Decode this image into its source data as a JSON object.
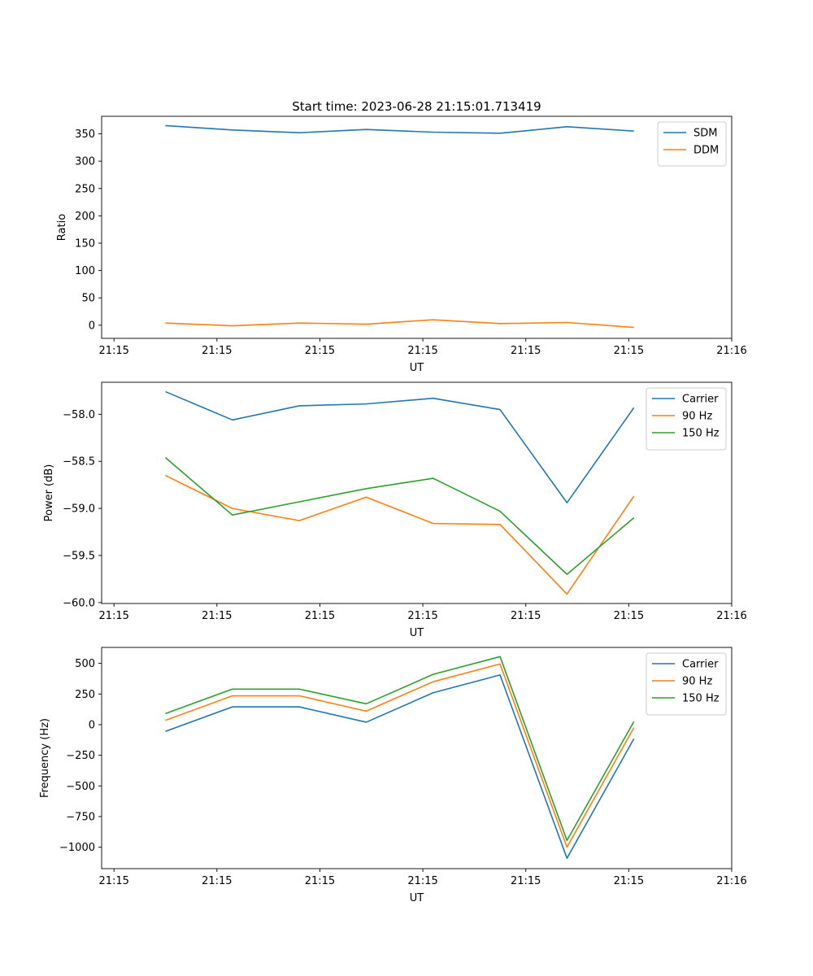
{
  "figure": {
    "title": "Start time: 2023-06-28 21:15:01.713419"
  },
  "chart_data": [
    {
      "type": "line",
      "title": "Start time: 2023-06-28 21:15:01.713419",
      "xlabel": "UT",
      "ylabel": "Ratio",
      "x_tick_labels": [
        "21:15",
        "21:15",
        "21:15",
        "21:15",
        "21:15",
        "21:15",
        "21:16"
      ],
      "x_tick_values": [
        0,
        1,
        2,
        3,
        4,
        5,
        6
      ],
      "xlim": [
        -0.12,
        6.0
      ],
      "x": [
        0.5,
        1.15,
        1.8,
        2.45,
        3.1,
        3.75,
        4.4,
        5.05
      ],
      "ylim": [
        -24,
        382
      ],
      "y_ticks": [
        0,
        50,
        100,
        150,
        200,
        250,
        300,
        350
      ],
      "legend_position": "upper right",
      "series": [
        {
          "name": "SDM",
          "color": "#1f77b4",
          "values": [
            365,
            357,
            352,
            358,
            353,
            351,
            363,
            355
          ]
        },
        {
          "name": "DDM",
          "color": "#ff7f0e",
          "values": [
            4,
            -1,
            4,
            2,
            10,
            3,
            5,
            -4
          ]
        }
      ]
    },
    {
      "type": "line",
      "xlabel": "UT",
      "ylabel": "Power (dB)",
      "x_tick_labels": [
        "21:15",
        "21:15",
        "21:15",
        "21:15",
        "21:15",
        "21:15",
        "21:16"
      ],
      "x_tick_values": [
        0,
        1,
        2,
        3,
        4,
        5,
        6
      ],
      "xlim": [
        -0.12,
        6.0
      ],
      "x": [
        0.5,
        1.15,
        1.8,
        2.45,
        3.1,
        3.75,
        4.4,
        5.05
      ],
      "ylim": [
        -60.01,
        -57.66
      ],
      "y_ticks": [
        -60.0,
        -59.5,
        -59.0,
        -58.5,
        -58.0
      ],
      "y_tick_labels": [
        "−60.0",
        "−59.5",
        "−59.0",
        "−58.5",
        "−58.0"
      ],
      "legend_position": "upper right",
      "series": [
        {
          "name": "Carrier",
          "color": "#1f77b4",
          "values": [
            -57.76,
            -58.06,
            -57.91,
            -57.89,
            -57.83,
            -57.95,
            -58.94,
            -57.93
          ]
        },
        {
          "name": "90 Hz",
          "color": "#ff7f0e",
          "values": [
            -58.65,
            -59.0,
            -59.13,
            -58.88,
            -59.16,
            -59.17,
            -59.91,
            -58.87
          ]
        },
        {
          "name": "150 Hz",
          "color": "#2ca02c",
          "values": [
            -58.46,
            -59.07,
            -58.93,
            -58.79,
            -58.68,
            -59.03,
            -59.7,
            -59.1
          ]
        }
      ]
    },
    {
      "type": "line",
      "xlabel": "UT",
      "ylabel": "Frequency (Hz)",
      "x_tick_labels": [
        "21:15",
        "21:15",
        "21:15",
        "21:15",
        "21:15",
        "21:15",
        "21:16"
      ],
      "x_tick_values": [
        0,
        1,
        2,
        3,
        4,
        5,
        6
      ],
      "xlim": [
        -0.12,
        6.0
      ],
      "x": [
        0.5,
        1.15,
        1.8,
        2.45,
        3.1,
        3.75,
        4.4,
        5.05
      ],
      "ylim": [
        -1175,
        630
      ],
      "y_ticks": [
        -1000,
        -750,
        -500,
        -250,
        0,
        250,
        500
      ],
      "y_tick_labels": [
        "−1000",
        "−750",
        "−500",
        "−250",
        "0",
        "250",
        "500"
      ],
      "legend_position": "upper right",
      "series": [
        {
          "name": "Carrier",
          "color": "#1f77b4",
          "values": [
            -55,
            145,
            145,
            20,
            260,
            405,
            -1090,
            -115
          ]
        },
        {
          "name": "90 Hz",
          "color": "#ff7f0e",
          "values": [
            35,
            235,
            235,
            110,
            350,
            495,
            -1000,
            -25
          ]
        },
        {
          "name": "150 Hz",
          "color": "#2ca02c",
          "values": [
            90,
            290,
            290,
            170,
            410,
            555,
            -945,
            25
          ]
        }
      ]
    }
  ]
}
